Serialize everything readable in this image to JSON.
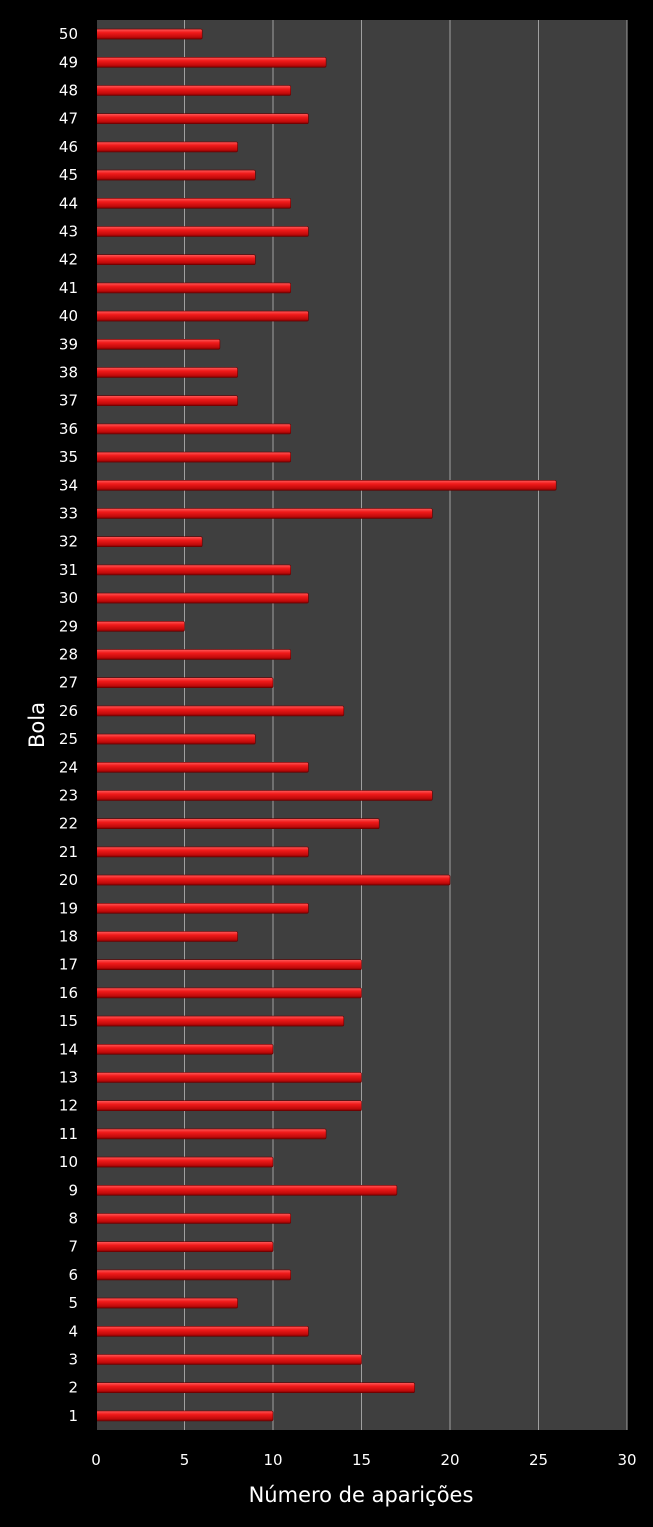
{
  "chart_data": {
    "type": "bar",
    "orientation": "horizontal",
    "title": "",
    "xlabel": "Número de aparições",
    "ylabel": "Bola",
    "xlim": [
      0,
      30
    ],
    "xticks": [
      0,
      5,
      10,
      15,
      20,
      25,
      30
    ],
    "grid": true,
    "categories": [
      "1",
      "2",
      "3",
      "4",
      "5",
      "6",
      "7",
      "8",
      "9",
      "10",
      "11",
      "12",
      "13",
      "14",
      "15",
      "16",
      "17",
      "18",
      "19",
      "20",
      "21",
      "22",
      "23",
      "24",
      "25",
      "26",
      "27",
      "28",
      "29",
      "30",
      "31",
      "32",
      "33",
      "34",
      "35",
      "36",
      "37",
      "38",
      "39",
      "40",
      "41",
      "42",
      "43",
      "44",
      "45",
      "46",
      "47",
      "48",
      "49",
      "50"
    ],
    "values": [
      10,
      18,
      15,
      12,
      8,
      11,
      10,
      11,
      17,
      10,
      13,
      15,
      15,
      10,
      14,
      15,
      15,
      8,
      12,
      20,
      12,
      16,
      19,
      12,
      9,
      14,
      10,
      11,
      5,
      12,
      11,
      6,
      19,
      26,
      11,
      11,
      8,
      8,
      7,
      12,
      11,
      9,
      12,
      11,
      9,
      8,
      12,
      11,
      13,
      6
    ],
    "colors": {
      "bar": "#e8141c",
      "plot_background": "#3f3f3f",
      "background": "#000000",
      "grid": "#a0a0a0",
      "text": "#ffffff"
    }
  }
}
